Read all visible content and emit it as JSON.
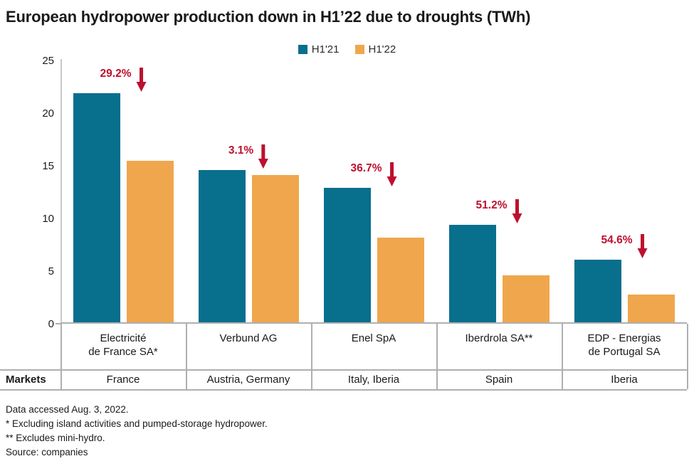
{
  "chart_data": {
    "type": "bar",
    "title": "European hydropower production down in H1’22 due to droughts (TWh)",
    "unit": "TWh",
    "ylim": [
      0,
      25
    ],
    "yticks": [
      0,
      5,
      10,
      15,
      20,
      25
    ],
    "legend_position": "top-center",
    "grid": false,
    "categories": [
      "Electricité de France SA*",
      "Verbund AG",
      "Enel SpA",
      "Iberdrola SA**",
      "EDP - Energias de Portugal SA"
    ],
    "category_lines": [
      [
        "Electricité",
        "de France SA*"
      ],
      [
        "Verbund AG"
      ],
      [
        "Enel SpA"
      ],
      [
        "Iberdrola SA**"
      ],
      [
        "EDP - Energias",
        "de Portugal SA"
      ]
    ],
    "series": [
      {
        "name": "H1'21",
        "color": "#086F8D",
        "values": [
          21.9,
          14.6,
          12.9,
          9.4,
          6.1
        ]
      },
      {
        "name": "H1'22",
        "color": "#F0A64D",
        "values": [
          15.5,
          14.1,
          8.2,
          4.6,
          2.8
        ]
      }
    ],
    "decline_labels": [
      "29.2%",
      "3.1%",
      "36.7%",
      "51.2%",
      "54.6%"
    ],
    "annotation_color": "#BD102E",
    "markets_header": "Markets",
    "markets": [
      "France",
      "Austria, Germany",
      "Italy, Iberia",
      "Spain",
      "Iberia"
    ]
  },
  "footnotes": [
    "Data accessed Aug. 3, 2022.",
    "* Excluding island activities and pumped-storage hydropower.",
    "** Excludes mini-hydro.",
    "Source: companies"
  ]
}
